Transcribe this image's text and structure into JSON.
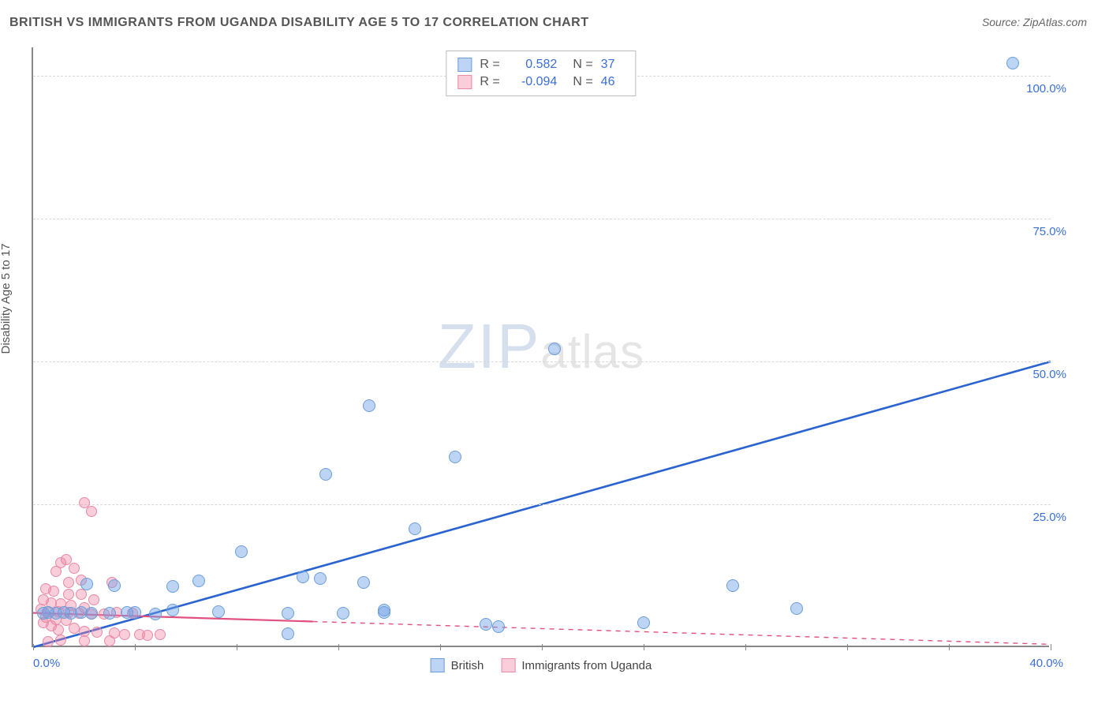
{
  "title": "BRITISH VS IMMIGRANTS FROM UGANDA DISABILITY AGE 5 TO 17 CORRELATION CHART",
  "source": "Source: ZipAtlas.com",
  "watermark": {
    "zip": "ZIP",
    "atlas": "atlas"
  },
  "chart": {
    "type": "scatter",
    "ylabel": "Disability Age 5 to 17",
    "xlim": [
      0,
      40
    ],
    "ylim": [
      0,
      105
    ],
    "yticks": [
      25,
      50,
      75,
      100
    ],
    "ytick_labels": [
      "25.0%",
      "50.0%",
      "75.0%",
      "100.0%"
    ],
    "xticks_minor": [
      0,
      4,
      8,
      12,
      16,
      20,
      24,
      28,
      32,
      36,
      40
    ],
    "x_start_label": "0.0%",
    "x_end_label": "40.0%",
    "grid_color": "#d8d8d8",
    "axis_color": "#888888",
    "background_color": "#ffffff"
  },
  "series": {
    "british": {
      "label": "British",
      "color_fill": "rgba(110, 160, 230, 0.45)",
      "color_stroke": "#6a9ed8",
      "trend_color": "#2b64d0",
      "trend_width": 2.6,
      "trend_style": "solid",
      "marker_radius": 8,
      "R": "0.582",
      "N": "37",
      "trend": {
        "x1": 0,
        "y1": 0,
        "x2": 40,
        "y2": 50
      },
      "points": [
        {
          "x": 38.5,
          "y": 102
        },
        {
          "x": 20.5,
          "y": 52
        },
        {
          "x": 13.2,
          "y": 42
        },
        {
          "x": 16.6,
          "y": 33
        },
        {
          "x": 11.5,
          "y": 30
        },
        {
          "x": 15.0,
          "y": 20.5
        },
        {
          "x": 8.2,
          "y": 16.5
        },
        {
          "x": 10.6,
          "y": 12.0
        },
        {
          "x": 11.3,
          "y": 11.8
        },
        {
          "x": 13.0,
          "y": 11.0
        },
        {
          "x": 6.5,
          "y": 11.3
        },
        {
          "x": 5.5,
          "y": 10.4
        },
        {
          "x": 27.5,
          "y": 10.5
        },
        {
          "x": 30.0,
          "y": 6.5
        },
        {
          "x": 24.0,
          "y": 4.0
        },
        {
          "x": 17.8,
          "y": 3.7
        },
        {
          "x": 18.3,
          "y": 3.3
        },
        {
          "x": 13.8,
          "y": 5.8
        },
        {
          "x": 13.8,
          "y": 6.2
        },
        {
          "x": 12.2,
          "y": 5.7
        },
        {
          "x": 10.0,
          "y": 2.1
        },
        {
          "x": 10.0,
          "y": 5.6
        },
        {
          "x": 7.3,
          "y": 6.0
        },
        {
          "x": 5.5,
          "y": 6.2
        },
        {
          "x": 4.8,
          "y": 5.5
        },
        {
          "x": 4.0,
          "y": 5.8
        },
        {
          "x": 3.7,
          "y": 5.8
        },
        {
          "x": 3.0,
          "y": 5.7
        },
        {
          "x": 2.3,
          "y": 5.6
        },
        {
          "x": 1.9,
          "y": 5.8
        },
        {
          "x": 1.5,
          "y": 5.7
        },
        {
          "x": 1.2,
          "y": 5.8
        },
        {
          "x": 0.9,
          "y": 5.7
        },
        {
          "x": 0.6,
          "y": 5.8
        },
        {
          "x": 0.4,
          "y": 5.6
        },
        {
          "x": 3.2,
          "y": 10.5
        },
        {
          "x": 2.1,
          "y": 10.8
        }
      ]
    },
    "uganda": {
      "label": "Immigrants from Uganda",
      "color_fill": "rgba(240, 130, 160, 0.40)",
      "color_stroke": "#e88aa8",
      "trend_color": "#e05080",
      "trend_width": 2.2,
      "trend_style_solid_until_x": 11,
      "trend_style_dash_after": "6 6",
      "marker_radius": 7,
      "R": "-0.094",
      "N": "46",
      "trend": {
        "x1": 0,
        "y1": 6.0,
        "x2": 40,
        "y2": 0.5
      },
      "points": [
        {
          "x": 2.0,
          "y": 25.0
        },
        {
          "x": 2.3,
          "y": 23.5
        },
        {
          "x": 1.3,
          "y": 15.0
        },
        {
          "x": 1.1,
          "y": 14.5
        },
        {
          "x": 1.6,
          "y": 13.5
        },
        {
          "x": 0.9,
          "y": 13.0
        },
        {
          "x": 1.9,
          "y": 11.5
        },
        {
          "x": 1.4,
          "y": 11.0
        },
        {
          "x": 3.1,
          "y": 11.0
        },
        {
          "x": 0.5,
          "y": 10.0
        },
        {
          "x": 0.8,
          "y": 9.5
        },
        {
          "x": 1.4,
          "y": 9.0
        },
        {
          "x": 1.9,
          "y": 9.0
        },
        {
          "x": 2.4,
          "y": 8.0
        },
        {
          "x": 0.4,
          "y": 8.0
        },
        {
          "x": 0.7,
          "y": 7.4
        },
        {
          "x": 1.1,
          "y": 7.3
        },
        {
          "x": 1.5,
          "y": 7.0
        },
        {
          "x": 2.0,
          "y": 6.7
        },
        {
          "x": 0.3,
          "y": 6.4
        },
        {
          "x": 0.6,
          "y": 6.0
        },
        {
          "x": 1.0,
          "y": 5.9
        },
        {
          "x": 1.4,
          "y": 5.8
        },
        {
          "x": 1.8,
          "y": 5.6
        },
        {
          "x": 2.3,
          "y": 5.5
        },
        {
          "x": 2.8,
          "y": 5.5
        },
        {
          "x": 3.3,
          "y": 5.8
        },
        {
          "x": 3.9,
          "y": 5.7
        },
        {
          "x": 0.5,
          "y": 5.0
        },
        {
          "x": 0.9,
          "y": 4.6
        },
        {
          "x": 1.3,
          "y": 4.4
        },
        {
          "x": 0.4,
          "y": 4.0
        },
        {
          "x": 0.7,
          "y": 3.5
        },
        {
          "x": 1.6,
          "y": 3.0
        },
        {
          "x": 1.0,
          "y": 2.8
        },
        {
          "x": 2.0,
          "y": 2.5
        },
        {
          "x": 2.5,
          "y": 2.4
        },
        {
          "x": 3.2,
          "y": 2.2
        },
        {
          "x": 3.6,
          "y": 2.0
        },
        {
          "x": 4.2,
          "y": 2.0
        },
        {
          "x": 4.5,
          "y": 1.8
        },
        {
          "x": 5.0,
          "y": 1.9
        },
        {
          "x": 1.1,
          "y": 1.0
        },
        {
          "x": 2.0,
          "y": 0.9
        },
        {
          "x": 3.0,
          "y": 0.8
        },
        {
          "x": 0.6,
          "y": 0.7
        }
      ]
    }
  }
}
